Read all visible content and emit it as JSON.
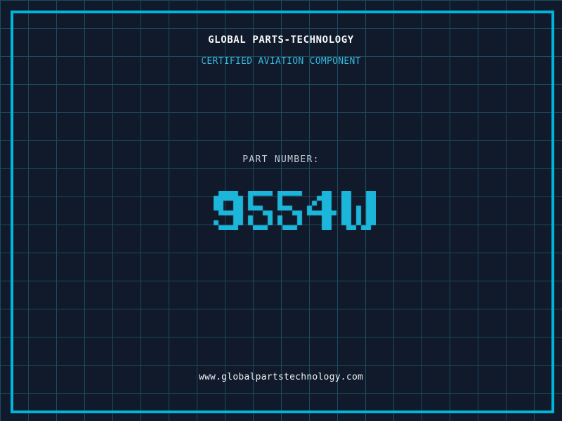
{
  "colors": {
    "bg": "#101a2b",
    "grid": "#1d4a5f",
    "accent": "#00b4da",
    "digit": "#1cb6da",
    "subtitle": "#35b9dc",
    "title": "#f7f8f9",
    "label": "#c6ccd6",
    "url": "#edf0f4"
  },
  "header": {
    "title": "GLOBAL PARTS-TECHNOLOGY",
    "subtitle": "CERTIFIED AVIATION COMPONENT"
  },
  "part": {
    "label": "PART NUMBER:",
    "value": "9554W"
  },
  "footer": {
    "url": "www.globalpartstechnology.com"
  }
}
